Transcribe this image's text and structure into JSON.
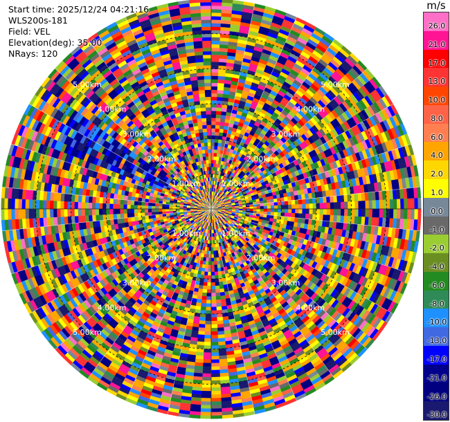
{
  "chart_data": {
    "type": "heatmap",
    "projection": "polar-ppi",
    "info": {
      "start_time": "Start time: 2025/12/24 04:21:16",
      "instrument": "WLS200s-181",
      "field": "Field: VEL",
      "elevation": "Elevation(deg): 35.00",
      "nrays": "NRays: 120"
    },
    "n_rays": 120,
    "n_gates": 60,
    "max_range_km": 6,
    "range_rings": [
      {
        "label": "1.00km",
        "range_km": 1
      },
      {
        "label": "2.00km",
        "range_km": 2
      },
      {
        "label": "3.00km",
        "range_km": 3
      },
      {
        "label": "4.00km",
        "range_km": 4
      },
      {
        "label": "5.00km",
        "range_km": 5
      }
    ],
    "colorbar": {
      "unit": "m/s",
      "ticks": [
        "26.0",
        "21.0",
        "17.0",
        "13.0",
        "10.0",
        "8.0",
        "6.0",
        "4.0",
        "2.0",
        "1.0",
        "0.0",
        "-1.0",
        "-2.0",
        "-4.0",
        "-6.0",
        "-8.0",
        "-10.0",
        "-13.0",
        "-17.0",
        "-21.0",
        "-26.0",
        "-30.0"
      ],
      "colors": [
        "#ff6ec7",
        "#ff1493",
        "#ff0000",
        "#ff3333",
        "#ff4500",
        "#ff6347",
        "#ff7f50",
        "#ffa500",
        "#ffd700",
        "#ffff00",
        "#778899",
        "#696969",
        "#9acd32",
        "#6b8e23",
        "#228b22",
        "#2e8b57",
        "#1e90ff",
        "#4169e1",
        "#0000ff",
        "#00008b",
        "#000080",
        "#191970"
      ]
    },
    "dominant_sectors": [
      {
        "azimuth_from_deg": 290,
        "azimuth_to_deg": 305,
        "note": "strong negative velocity band (blue)"
      }
    ]
  }
}
